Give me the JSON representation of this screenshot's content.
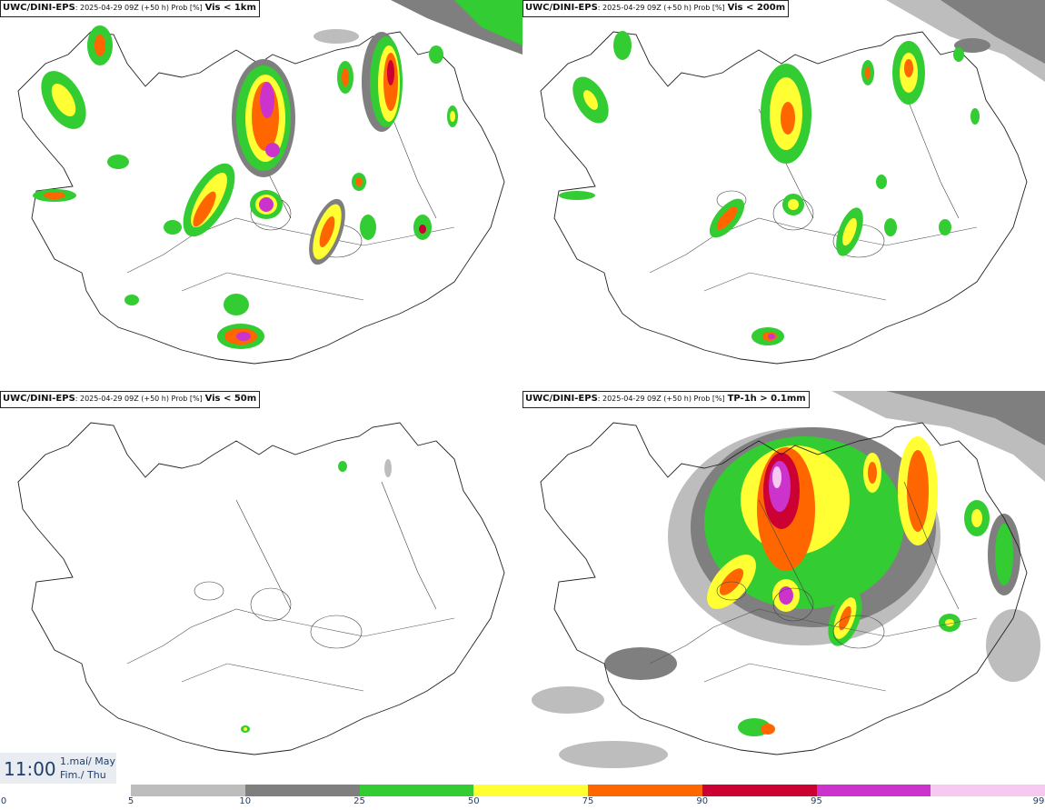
{
  "panels": [
    {
      "model": "UWC/DINI-EPS",
      "meta": ": 2025-04-29 09Z (+50 h) Prob [%]",
      "variable": "Vis < 1km"
    },
    {
      "model": "UWC/DINI-EPS",
      "meta": ": 2025-04-29 09Z (+50 h) Prob [%]",
      "variable": "Vis < 200m"
    },
    {
      "model": "UWC/DINI-EPS",
      "meta": ": 2025-04-29 09Z (+50 h) Prob [%]",
      "variable": "Vis < 50m"
    },
    {
      "model": "UWC/DINI-EPS",
      "meta": ": 2025-04-29 09Z (+50 h) Prob [%]",
      "variable": "TP-1h > 0.1mm"
    }
  ],
  "valid_time": {
    "time": "11:00",
    "date_line1": "1.maí/ May",
    "date_line2": "Fim./ Thu"
  },
  "colorbar": {
    "ticks": [
      "0",
      "5",
      "10",
      "25",
      "50",
      "75",
      "90",
      "95",
      "99"
    ],
    "colors": [
      "#bdbdbd",
      "#7f7f7f",
      "#33cc33",
      "#ffff33",
      "#ff6600",
      "#cc0033",
      "#cc33cc",
      "#f7c8f0"
    ]
  }
}
